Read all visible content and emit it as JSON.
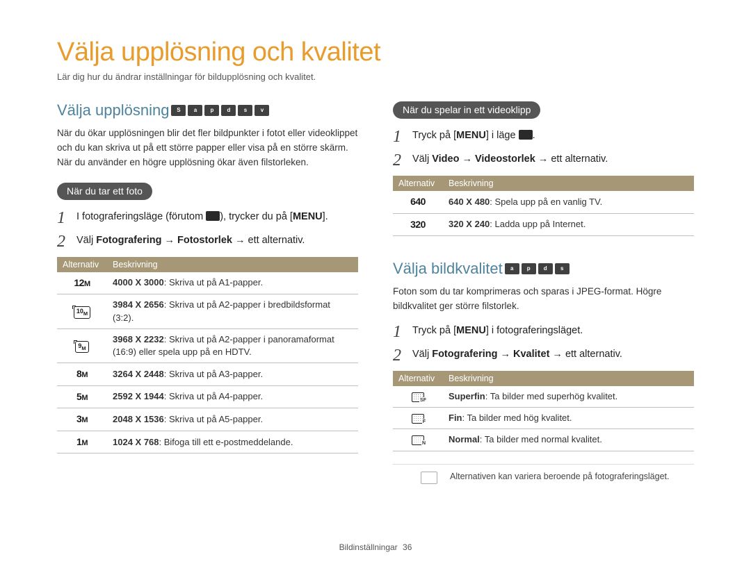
{
  "title": "Välja upplösning och kvalitet",
  "subtitle": "Lär dig hur du ändrar inställningar för bildupplösning och kvalitet.",
  "left": {
    "heading": "Välja upplösning",
    "mode_icons": [
      "S",
      "a",
      "p",
      "d",
      "s",
      "v"
    ],
    "intro": "När du ökar upplösningen blir det fler bildpunkter i fotot eller videoklippet och du kan skriva ut på ett större papper eller visa på en större skärm. När du använder en högre upplösning ökar även filstorleken.",
    "pill": "När du tar ett foto",
    "step1_prefix": "I fotograferingsläge (förutom ",
    "step1_suffix": "), trycker du på [",
    "step1_menu": "MENU",
    "step1_end": "].",
    "step2_pre": "Välj ",
    "step2_bold": "Fotografering → Fotostorlek",
    "step2_post": " → ett alternativ.",
    "photo_table": {
      "header_alt": "Alternativ",
      "header_desc": "Beskrivning",
      "rows": [
        {
          "icon": "12m",
          "icon_type": "text",
          "d_bold": "4000 X 3000",
          "d_rest": ": Skriva ut på A1-papper."
        },
        {
          "icon": "10m",
          "icon_type": "box",
          "d_bold": "3984 X 2656",
          "d_rest": ": Skriva ut på A2-papper i bredbildsformat (3:2)."
        },
        {
          "icon": "9m",
          "icon_type": "box",
          "d_bold": "3968 X 2232",
          "d_rest": ": Skriva ut på A2-papper i panoramaformat (16:9) eller spela upp på en HDTV."
        },
        {
          "icon": "8m",
          "icon_type": "text",
          "d_bold": "3264 X 2448",
          "d_rest": ": Skriva ut på A3-papper."
        },
        {
          "icon": "5m",
          "icon_type": "text",
          "d_bold": "2592 X 1944",
          "d_rest": ": Skriva ut på A4-papper."
        },
        {
          "icon": "3m",
          "icon_type": "text",
          "d_bold": "2048 X 1536",
          "d_rest": ": Skriva ut på A5-papper."
        },
        {
          "icon": "1m",
          "icon_type": "text",
          "d_bold": "1024 X 768",
          "d_rest": ": Bifoga till ett e-postmeddelande."
        }
      ]
    }
  },
  "right": {
    "video_pill": "När du spelar in ett videoklipp",
    "vstep1_pre": "Tryck på [",
    "vstep1_menu": "MENU",
    "vstep1_mid": "] i läge ",
    "vstep1_end": ".",
    "vstep2_pre": "Välj ",
    "vstep2_bold": "Video → Videostorlek",
    "vstep2_post": " → ett alternativ.",
    "video_table": {
      "header_alt": "Alternativ",
      "header_desc": "Beskrivning",
      "rows": [
        {
          "icon": "640",
          "d_bold": "640 X 480",
          "d_rest": ": Spela upp på en vanlig TV."
        },
        {
          "icon": "320",
          "d_bold": "320 X 240",
          "d_rest": ": Ladda upp på Internet."
        }
      ]
    },
    "quality_heading": "Välja bildkvalitet",
    "quality_intro": "Foton som du tar komprimeras och sparas i JPEG-format. Högre bildkvalitet ger större filstorlek.",
    "qstep1_pre": "Tryck på [",
    "qstep1_menu": "MENU",
    "qstep1_post": "] i fotograferingsläget.",
    "qstep2_pre": "Välj ",
    "qstep2_bold": "Fotografering → Kvalitet",
    "qstep2_post": " → ett alternativ.",
    "quality_table": {
      "header_alt": "Alternativ",
      "header_desc": "Beskrivning",
      "rows": [
        {
          "cls": "sf",
          "d_bold": "Superfin",
          "d_rest": ": Ta bilder med superhög kvalitet."
        },
        {
          "cls": "f",
          "d_bold": "Fin",
          "d_rest": ": Ta bilder med hög kvalitet."
        },
        {
          "cls": "n",
          "d_bold": "Normal",
          "d_rest": ": Ta bilder med normal kvalitet."
        }
      ]
    },
    "note": "Alternativen kan variera beroende på fotograferingsläget."
  },
  "footer_section": "Bildinställningar",
  "footer_page": "36",
  "colors": {
    "orange": "#e79c2d",
    "blue": "#4e839e",
    "table_header": "#a69876",
    "pill": "#555555"
  }
}
